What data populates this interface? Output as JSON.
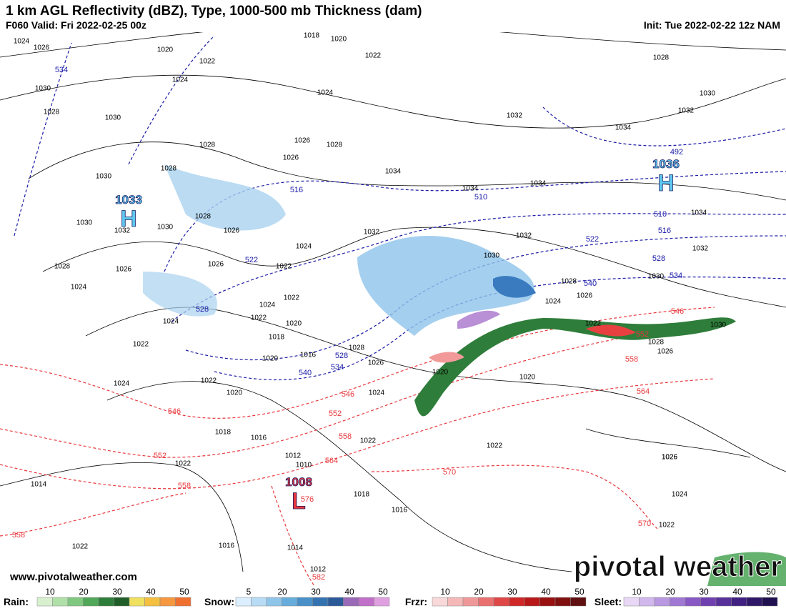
{
  "header": {
    "title": "1 km AGL Reflectivity (dBZ), Type, 1000-500 mb Thickness (dam)",
    "valid": "F060 Valid: Fri 2022-02-25 00z",
    "init": "Init: Tue 2022-02-22 12z NAM"
  },
  "map": {
    "isobars": [
      "1024",
      "1026",
      "1020",
      "1018",
      "1020",
      "1022",
      "1022",
      "1030",
      "1024",
      "1024",
      "1028",
      "1030",
      "1028",
      "1030",
      "1032",
      "1032",
      "1034",
      "1028",
      "1026",
      "1026",
      "1028",
      "1034",
      "1030",
      "1028",
      "1034",
      "1034",
      "1034",
      "1028",
      "1030",
      "1030",
      "1032",
      "1026",
      "1032",
      "1032",
      "1032",
      "1024",
      "1030",
      "1028",
      "1026",
      "1026",
      "1022",
      "1030",
      "1028",
      "1024",
      "1026",
      "1024",
      "1022",
      "1024",
      "1024",
      "1022",
      "1020",
      "1022",
      "1018",
      "1030",
      "1028",
      "1026",
      "1022",
      "1016",
      "1028",
      "1020",
      "1026",
      "1020",
      "1020",
      "1024",
      "1022",
      "1020",
      "1024",
      "1018",
      "1016",
      "1022",
      "1022",
      "1012",
      "1026",
      "1010",
      "1022",
      "1026",
      "1014",
      "1018",
      "1024",
      "1016",
      "1022",
      "1016",
      "1022",
      "1014",
      "1012"
    ],
    "thickness_cold": [
      "534",
      "492",
      "516",
      "510",
      "510",
      "516",
      "522",
      "522",
      "528",
      "534",
      "540",
      "528",
      "528",
      "534",
      "540"
    ],
    "thickness_warm": [
      "546",
      "552",
      "558",
      "546",
      "564",
      "552",
      "546",
      "558",
      "552",
      "564",
      "570",
      "558",
      "558",
      "570",
      "576",
      "582"
    ],
    "centers": [
      {
        "value": "1033",
        "symbol": "H"
      },
      {
        "value": "1036",
        "symbol": "H"
      },
      {
        "value": "1008",
        "symbol": "L"
      }
    ]
  },
  "footer": {
    "site": "www.pivotalweather.com",
    "brand": "pivotal weather"
  },
  "legend": [
    {
      "label": "Rain:",
      "ticks": [
        "10",
        "20",
        "30",
        "40",
        "50"
      ]
    },
    {
      "label": "Snow:",
      "ticks": [
        "5",
        "20",
        "30",
        "40",
        "50"
      ]
    },
    {
      "label": "Frzr:",
      "ticks": [
        "10",
        "20",
        "30",
        "40",
        "50"
      ]
    },
    {
      "label": "Sleet:",
      "ticks": [
        "10",
        "20",
        "30",
        "40",
        "50"
      ]
    }
  ]
}
